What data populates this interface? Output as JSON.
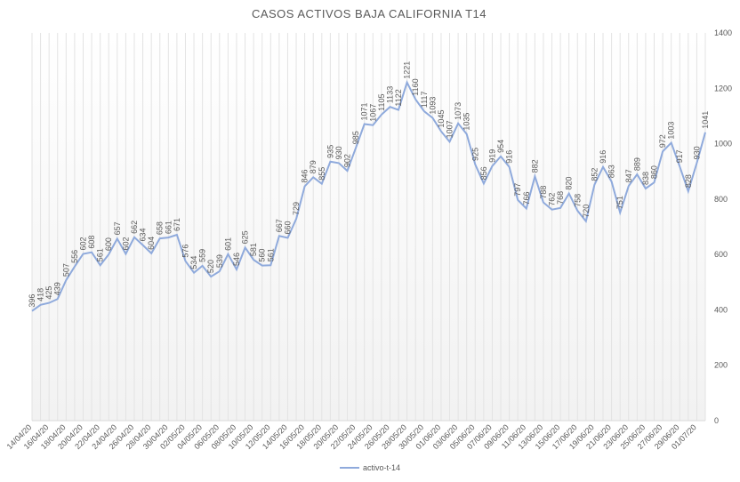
{
  "chart_data": {
    "type": "line",
    "title": "CASOS  ACTIVOS BAJA CALIFORNIA  T14",
    "categories": [
      "14/04/20",
      null,
      "16/04/20",
      null,
      "18/04/20",
      null,
      "20/04/20",
      null,
      "22/04/20",
      null,
      "24/04/20",
      null,
      "26/04/20",
      null,
      "28/04/20",
      null,
      "30/04/20",
      null,
      "02/05/20",
      null,
      "04/05/20",
      null,
      "06/05/20",
      null,
      "08/05/20",
      null,
      "10/05/20",
      null,
      "12/05/20",
      null,
      "14/05/20",
      null,
      "16/05/20",
      null,
      "18/05/20",
      null,
      "20/05/20",
      null,
      "22/05/20",
      null,
      "24/05/20",
      null,
      "26/05/20",
      null,
      "28/05/20",
      null,
      "30/05/20",
      null,
      "01/06/20",
      null,
      "03/06/20",
      null,
      "05/06/20",
      null,
      "07/06/20",
      null,
      "09/06/20",
      null,
      "11/06/20",
      null,
      "13/06/20",
      null,
      "15/06/20",
      null,
      "17/06/20",
      null,
      "19/06/20",
      null,
      "21/06/20",
      null,
      "23/06/20",
      null,
      "25/06/20",
      null,
      "27/06/20",
      null,
      "29/06/20",
      null,
      "01/07/20",
      null
    ],
    "series": [
      {
        "name": "activo-t-14",
        "color": "#8faadc",
        "values": [
          396,
          418,
          425,
          439,
          507,
          556,
          602,
          608,
          561,
          600,
          657,
          602,
          662,
          634,
          604,
          658,
          661,
          671,
          576,
          534,
          559,
          520,
          539,
          601,
          546,
          625,
          581,
          560,
          561,
          667,
          660,
          729,
          846,
          879,
          855,
          935,
          930,
          902,
          985,
          1071,
          1067,
          1105,
          1133,
          1122,
          1221,
          1160,
          1117,
          1093,
          1045,
          1007,
          1073,
          1035,
          925,
          856,
          919,
          954,
          916,
          797,
          766,
          882,
          788,
          762,
          768,
          820,
          758,
          720,
          852,
          916,
          863,
          751,
          847,
          889,
          838,
          860,
          972,
          1003,
          917,
          828,
          930,
          1041
        ]
      }
    ],
    "ylim": [
      0,
      1400
    ],
    "yticks": [
      0,
      200,
      400,
      600,
      800,
      1000,
      1200,
      1400
    ],
    "grid": true,
    "legend": "bottom"
  }
}
